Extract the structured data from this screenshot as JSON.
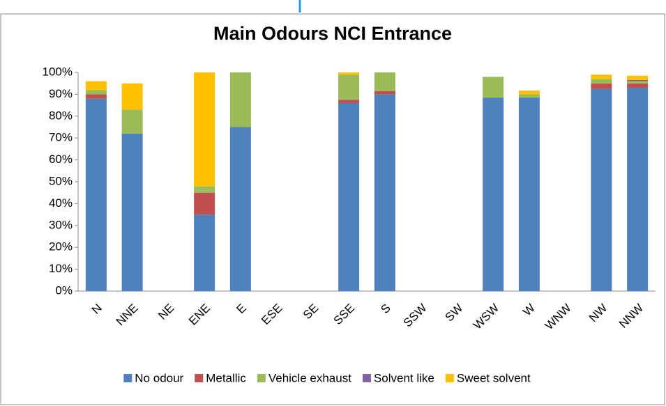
{
  "chart_data": {
    "type": "stacked_bar",
    "title": "Main Odours NCI Entrance",
    "categories": [
      "N",
      "NNE",
      "NE",
      "ENE",
      "E",
      "ESE",
      "SE",
      "SSE",
      "S",
      "SSW",
      "SW",
      "WSW",
      "W",
      "WNW",
      "NW",
      "NNW"
    ],
    "series": [
      {
        "name": "No odour",
        "color": "#4f81bd",
        "values": [
          88,
          72,
          0,
          35,
          75,
          0,
          0,
          86,
          90,
          0,
          0,
          88.5,
          88.5,
          0,
          92.5,
          93
        ]
      },
      {
        "name": "Metallic",
        "color": "#c0504d",
        "values": [
          2,
          0,
          0,
          10,
          0,
          0,
          0,
          1.5,
          1.5,
          0,
          0,
          0,
          0,
          0,
          2.5,
          2
        ]
      },
      {
        "name": "Vehicle exhaust",
        "color": "#9bbb59",
        "values": [
          2,
          11,
          0,
          3,
          25,
          0,
          0,
          11.5,
          8.5,
          0,
          0,
          9.5,
          1.5,
          0,
          2,
          1
        ]
      },
      {
        "name": "Solvent like",
        "color": "#8064a2",
        "values": [
          0,
          0,
          0,
          0,
          0,
          0,
          0,
          0,
          0,
          0,
          0,
          0,
          0,
          0,
          0,
          0.5
        ]
      },
      {
        "name": "Sweet solvent",
        "color": "#ffc000",
        "values": [
          4,
          12,
          0,
          52,
          0,
          0,
          0,
          1,
          0,
          0,
          0,
          0,
          1.7,
          0,
          2,
          2
        ]
      }
    ],
    "ylim": [
      0,
      100
    ],
    "yticks": [
      {
        "value": 0,
        "label": "0%"
      },
      {
        "value": 10,
        "label": "10%"
      },
      {
        "value": 20,
        "label": "20%"
      },
      {
        "value": 30,
        "label": "30%"
      },
      {
        "value": 40,
        "label": "40%"
      },
      {
        "value": 50,
        "label": "50%"
      },
      {
        "value": 60,
        "label": "60%"
      },
      {
        "value": 70,
        "label": "70%"
      },
      {
        "value": 80,
        "label": "80%"
      },
      {
        "value": 90,
        "label": "90%"
      },
      {
        "value": 100,
        "label": "100%"
      }
    ],
    "grid": false,
    "legend": "bottom"
  }
}
